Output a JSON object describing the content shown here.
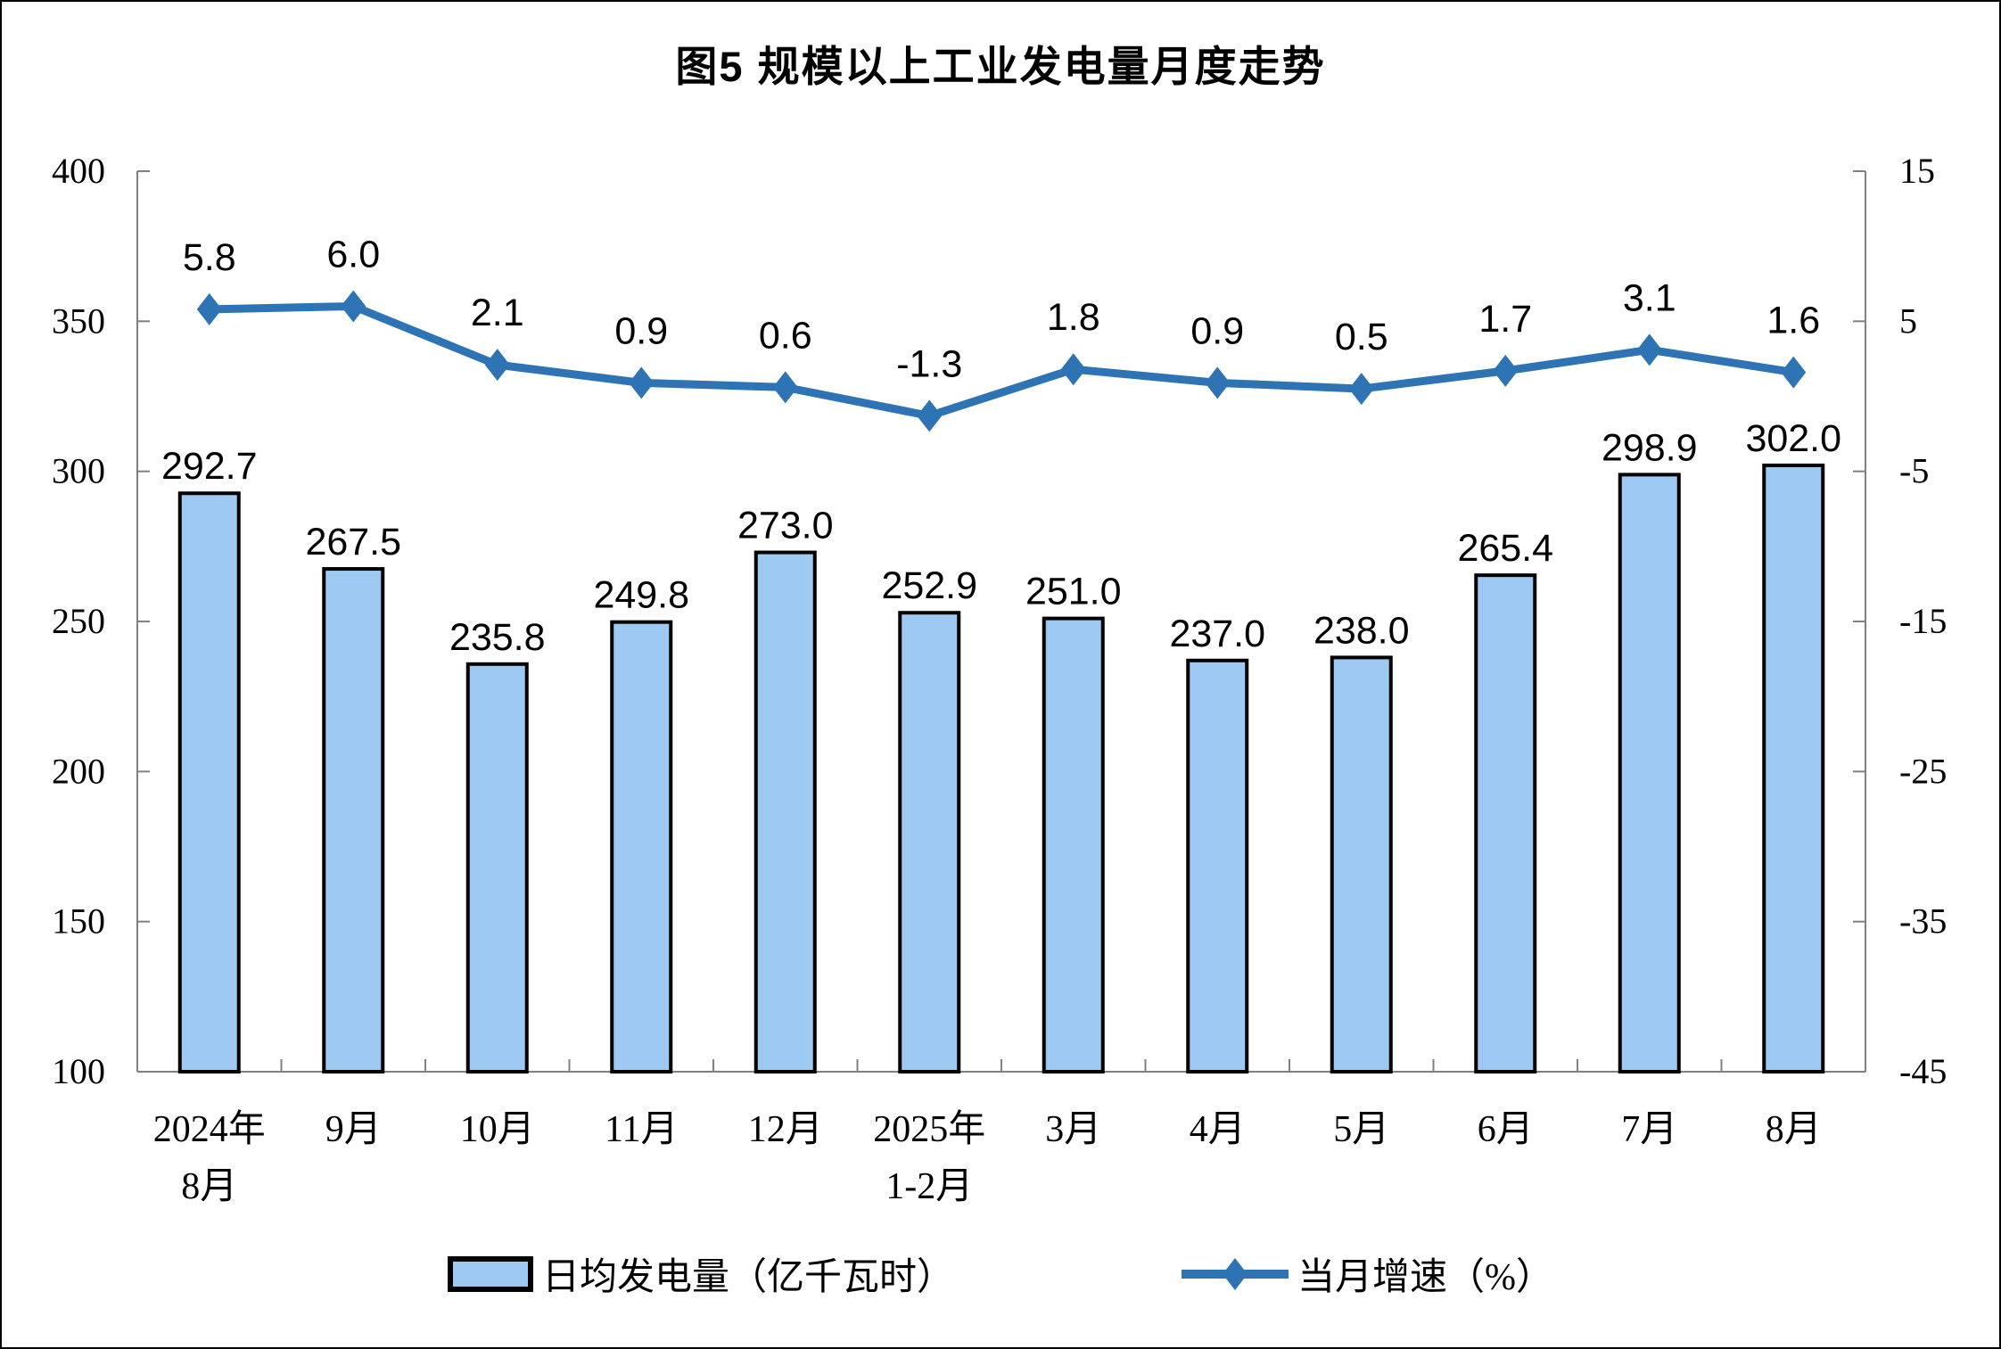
{
  "title": "图5  规模以上工业发电量月度走势",
  "legend": {
    "bar_label": "日均发电量（亿千瓦时）",
    "line_label": "当月增速（%）"
  },
  "colors": {
    "bar_fill": "#9DC9F2",
    "bar_border": "#000000",
    "line": "#2E74B5",
    "axis": "#808080",
    "text": "#000000",
    "background": "#FFFFFF"
  },
  "chart_data": {
    "type": "bar",
    "subtype": "combo-bar-line",
    "title": "图5  规模以上工业发电量月度走势",
    "categories": [
      "2024年\n8月",
      "9月",
      "10月",
      "11月",
      "12月",
      "2025年\n1-2月",
      "3月",
      "4月",
      "5月",
      "6月",
      "7月",
      "8月"
    ],
    "series": [
      {
        "name": "日均发电量（亿千瓦时）",
        "type": "bar",
        "axis": "left",
        "values": [
          292.7,
          267.5,
          235.8,
          249.8,
          273.0,
          252.9,
          251.0,
          237.0,
          238.0,
          265.4,
          298.9,
          302.0
        ]
      },
      {
        "name": "当月增速（%）",
        "type": "line",
        "axis": "right",
        "values": [
          5.8,
          6.0,
          2.1,
          0.9,
          0.6,
          -1.3,
          1.8,
          0.9,
          0.5,
          1.7,
          3.1,
          1.6
        ]
      }
    ],
    "left_axis": {
      "min": 100,
      "max": 400,
      "step": 50,
      "tick_labels": [
        "400",
        "350",
        "300",
        "250",
        "200",
        "150",
        "100"
      ]
    },
    "right_axis": {
      "min": -45,
      "max": 15,
      "step": 10,
      "tick_labels": [
        "15",
        "5",
        "-5",
        "-15",
        "-25",
        "-35",
        "-45"
      ]
    },
    "xlabel": "",
    "ylabel": "",
    "grid": false,
    "legend_position": "bottom",
    "data_labels": true,
    "label_decimals": 1
  }
}
